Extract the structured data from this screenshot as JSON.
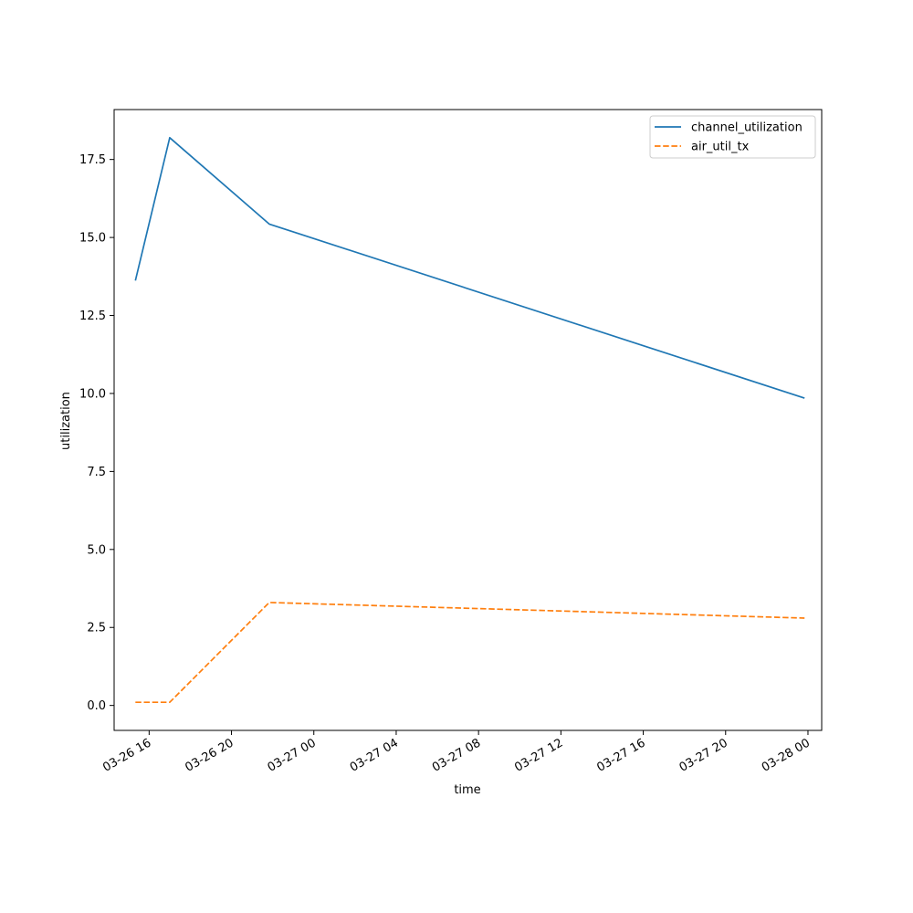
{
  "chart_data": {
    "type": "line",
    "xlabel": "time",
    "ylabel": "utilization",
    "x_ticks": [
      "03-26 16",
      "03-26 20",
      "03-27 00",
      "03-27 04",
      "03-27 08",
      "03-27 12",
      "03-27 16",
      "03-27 20",
      "03-28 00"
    ],
    "y_ticks": [
      "0.0",
      "2.5",
      "5.0",
      "7.5",
      "10.0",
      "12.5",
      "15.0",
      "17.5"
    ],
    "xlim": [
      "2024-03-26 14:18",
      "2024-03-28 00:40"
    ],
    "ylim": [
      -0.8,
      19.1
    ],
    "grid": false,
    "legend_position": "upper right",
    "series": [
      {
        "name": "channel_utilization",
        "color": "#1f77b4",
        "style": "solid",
        "x": [
          "2024-03-26 15:20",
          "2024-03-26 17:00",
          "2024-03-26 21:50",
          "2024-03-27 23:50"
        ],
        "y": [
          13.62,
          18.2,
          15.43,
          9.85
        ]
      },
      {
        "name": "air_util_tx",
        "color": "#ff7f0e",
        "style": "dashed",
        "x": [
          "2024-03-26 15:20",
          "2024-03-26 17:00",
          "2024-03-26 21:50",
          "2024-03-27 23:50"
        ],
        "y": [
          0.1,
          0.1,
          3.3,
          2.8
        ]
      }
    ]
  }
}
